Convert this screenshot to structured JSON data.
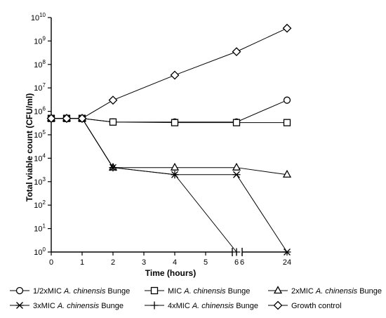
{
  "chart_data": {
    "type": "line",
    "xlabel": "Time (hours)",
    "ylabel": "Total viable count (CFU/ml)",
    "x_tick_labels": [
      "0",
      "1",
      "2",
      "3",
      "4",
      "5",
      "6",
      "6",
      "24"
    ],
    "x_axis_break": "between 6 and 24 hours",
    "y_scale": "log",
    "y_tick_labels": [
      {
        "base": "10",
        "exp": "0"
      },
      {
        "base": "10",
        "exp": "1"
      },
      {
        "base": "10",
        "exp": "2"
      },
      {
        "base": "10",
        "exp": "3"
      },
      {
        "base": "10",
        "exp": "4"
      },
      {
        "base": "10",
        "exp": "5"
      },
      {
        "base": "10",
        "exp": "6"
      },
      {
        "base": "10",
        "exp": "7"
      },
      {
        "base": "10",
        "exp": "8"
      },
      {
        "base": "10",
        "exp": "9"
      },
      {
        "base": "10",
        "exp": "10"
      }
    ],
    "ylim": [
      1,
      10000000000
    ],
    "x": [
      0,
      0.5,
      1,
      2,
      4,
      6,
      24
    ],
    "legend_position": "bottom",
    "series": [
      {
        "name": "1/2xMIC A. chinensis Bunge",
        "prefix": "1/2xMIC ",
        "italic": "A. chinensis",
        "suffix": " Bunge",
        "marker": "circle",
        "values": [
          500000,
          500000,
          500000,
          350000,
          350000,
          350000,
          3000000
        ]
      },
      {
        "name": "MIC A. chinensis Bunge",
        "prefix": "MIC ",
        "italic": "A. chinensis",
        "suffix": " Bunge",
        "marker": "square",
        "values": [
          500000,
          500000,
          500000,
          350000,
          330000,
          330000,
          330000
        ]
      },
      {
        "name": "2xMIC A. chinensis Bunge",
        "prefix": "2xMIC ",
        "italic": "A. chinensis",
        "suffix": " Bunge",
        "marker": "triangle",
        "values": [
          500000,
          500000,
          500000,
          4000,
          4000,
          4000,
          2000
        ]
      },
      {
        "name": "3xMIC A. chinensis Bunge",
        "prefix": "3xMIC ",
        "italic": "A. chinensis",
        "suffix": " Bunge",
        "marker": "star",
        "values": [
          500000,
          500000,
          500000,
          4000,
          2000,
          2000,
          1
        ]
      },
      {
        "name": "4xMIC A. chinensis Bunge",
        "prefix": "4xMIC ",
        "italic": "A. chinensis",
        "suffix": " Bunge",
        "marker": "plus",
        "values": [
          500000,
          500000,
          500000,
          4000,
          2000,
          1,
          null
        ]
      },
      {
        "name": "Growth control",
        "prefix": "Growth control",
        "italic": "",
        "suffix": "",
        "marker": "diamond",
        "values": [
          500000,
          500000,
          500000,
          3000000,
          35000000,
          350000000,
          3500000000
        ]
      }
    ]
  }
}
